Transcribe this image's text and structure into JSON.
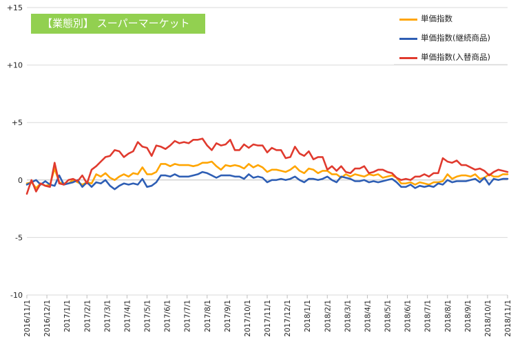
{
  "chart_data": {
    "type": "line",
    "title": "【業態別】 スーパーマーケット",
    "xlabel": "",
    "ylabel": "",
    "ylim": [
      -10,
      15
    ],
    "yticks": [
      -10,
      -5,
      0,
      5,
      10,
      15
    ],
    "ytick_labels": [
      "-10",
      "-5",
      "0",
      "+5",
      "+10",
      "+15"
    ],
    "x_tick_labels": [
      "2016/11/1",
      "2016/12/1",
      "2017/1/1",
      "2017/2/1",
      "2017/3/1",
      "2017/4/1",
      "2017/5/1",
      "2017/6/1",
      "2017/7/1",
      "2017/8/1",
      "2017/9/1",
      "2017/10/1",
      "2017/11/1",
      "2017/12/1",
      "2018/1/1",
      "2018/2/1",
      "2018/3/1",
      "2018/4/1",
      "2018/5/1",
      "2018/6/1",
      "2018/7/1",
      "2018/8/1",
      "2018/9/1",
      "2018/10/1",
      "2018/11/1"
    ],
    "grid": "horizontal",
    "legend_position": "top-right",
    "series": [
      {
        "name": "単価指数",
        "color": "#ffa500",
        "values": [
          -0.3,
          -0.2,
          -0.7,
          -0.3,
          -0.5,
          -0.4,
          1.0,
          -0.2,
          -0.3,
          -0.3,
          0.0,
          -0.2,
          -0.4,
          -0.2,
          -0.3,
          0.5,
          0.3,
          0.6,
          0.2,
          0.0,
          0.3,
          0.5,
          0.3,
          0.6,
          0.5,
          1.1,
          0.5,
          0.5,
          0.7,
          1.4,
          1.4,
          1.2,
          1.4,
          1.3,
          1.3,
          1.3,
          1.2,
          1.3,
          1.5,
          1.5,
          1.6,
          1.2,
          0.9,
          1.3,
          1.2,
          1.3,
          1.2,
          1.0,
          1.4,
          1.1,
          1.3,
          1.1,
          0.7,
          0.9,
          0.9,
          0.8,
          0.7,
          0.9,
          1.2,
          0.8,
          0.6,
          1.0,
          0.9,
          0.6,
          0.8,
          0.8,
          0.5,
          0.5,
          0.2,
          0.5,
          0.3,
          0.5,
          0.4,
          0.3,
          0.5,
          0.4,
          0.5,
          0.2,
          0.3,
          0.4,
          0.2,
          -0.3,
          -0.3,
          -0.2,
          -0.4,
          -0.2,
          -0.3,
          -0.4,
          -0.2,
          -0.2,
          -0.1,
          0.5,
          0.1,
          0.3,
          0.4,
          0.4,
          0.3,
          0.5,
          0.1,
          0.2,
          0.5,
          0.3,
          0.3,
          0.5,
          0.5
        ]
      },
      {
        "name": "単価指数(継続商品)",
        "color": "#2e5eb4",
        "values": [
          -0.4,
          -0.2,
          0.0,
          -0.4,
          -0.1,
          -0.4,
          -0.5,
          0.4,
          -0.4,
          -0.3,
          -0.2,
          0.0,
          -0.6,
          -0.2,
          -0.6,
          -0.2,
          -0.3,
          0.0,
          -0.5,
          -0.8,
          -0.5,
          -0.3,
          -0.4,
          -0.3,
          -0.4,
          0.1,
          -0.6,
          -0.5,
          -0.2,
          0.4,
          0.4,
          0.3,
          0.5,
          0.3,
          0.3,
          0.3,
          0.4,
          0.5,
          0.7,
          0.6,
          0.4,
          0.2,
          0.4,
          0.4,
          0.4,
          0.3,
          0.3,
          0.1,
          0.5,
          0.2,
          0.3,
          0.2,
          -0.2,
          0.0,
          0.0,
          0.1,
          0.0,
          0.1,
          0.3,
          0.0,
          -0.2,
          0.1,
          0.1,
          0.0,
          0.1,
          0.3,
          0.0,
          -0.2,
          0.3,
          0.2,
          0.1,
          -0.1,
          -0.1,
          0.0,
          -0.2,
          -0.1,
          -0.2,
          -0.1,
          0.0,
          0.1,
          -0.2,
          -0.6,
          -0.6,
          -0.4,
          -0.7,
          -0.5,
          -0.6,
          -0.5,
          -0.6,
          -0.3,
          -0.4,
          0.0,
          -0.2,
          -0.1,
          -0.1,
          -0.1,
          0.0,
          0.1,
          -0.2,
          0.2,
          -0.4,
          0.1,
          0.0,
          0.1,
          0.1
        ]
      },
      {
        "name": "単価指数(入替商品)",
        "color": "#e03a2e",
        "values": [
          -1.2,
          0.0,
          -1.0,
          -0.3,
          -0.5,
          -0.6,
          1.5,
          -0.3,
          -0.4,
          0.0,
          0.1,
          -0.1,
          0.4,
          -0.3,
          0.9,
          1.2,
          1.6,
          2.0,
          2.1,
          2.6,
          2.5,
          2.0,
          2.3,
          2.5,
          3.3,
          2.9,
          2.8,
          2.1,
          3.0,
          2.9,
          2.7,
          3.0,
          3.4,
          3.2,
          3.3,
          3.2,
          3.5,
          3.5,
          3.6,
          3.0,
          2.6,
          3.2,
          3.0,
          3.1,
          3.5,
          2.6,
          2.6,
          3.1,
          2.8,
          3.1,
          3.0,
          3.0,
          2.4,
          2.8,
          2.6,
          2.6,
          1.9,
          2.0,
          2.9,
          2.3,
          2.1,
          2.5,
          1.8,
          2.0,
          2.0,
          0.9,
          1.2,
          0.8,
          1.2,
          0.7,
          0.6,
          1.0,
          1.0,
          1.2,
          0.6,
          0.7,
          0.9,
          0.9,
          0.7,
          0.6,
          0.2,
          0.0,
          0.1,
          0.0,
          0.3,
          0.3,
          0.5,
          0.3,
          0.6,
          0.6,
          1.9,
          1.6,
          1.5,
          1.7,
          1.3,
          1.3,
          1.1,
          0.9,
          1.0,
          0.8,
          0.4,
          0.7,
          0.9,
          0.8,
          0.7
        ]
      }
    ]
  }
}
